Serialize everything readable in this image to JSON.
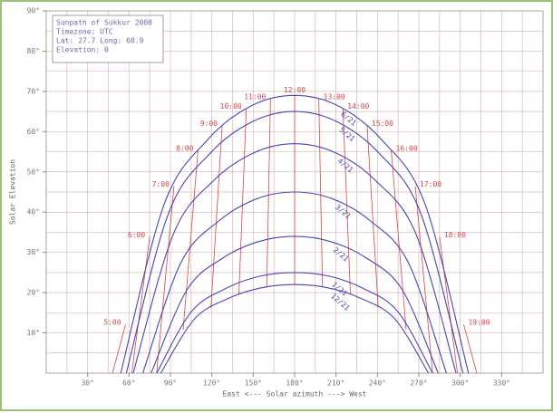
{
  "chart_data": {
    "type": "sunpath",
    "legend_lines": [
      "Sunpath of Sukkur 2008",
      "Timezone: UTC",
      "Lat: 27.7 Long: 68.9",
      "Elevation: 0"
    ],
    "xlabel": "East <--- Solar azimuth ---> West",
    "ylabel": "Solar Elevation",
    "xlim": [
      0,
      360
    ],
    "ylim": [
      0,
      90
    ],
    "xticks": [
      {
        "value": 30,
        "label": "30°"
      },
      {
        "value": 60,
        "label": "60°"
      },
      {
        "value": 90,
        "label": "90°"
      },
      {
        "value": 120,
        "label": "120°"
      },
      {
        "value": 150,
        "label": "150°"
      },
      {
        "value": 180,
        "label": "180°"
      },
      {
        "value": 210,
        "label": "210°"
      },
      {
        "value": 240,
        "label": "240°"
      },
      {
        "value": 270,
        "label": "270°"
      },
      {
        "value": 300,
        "label": "300°"
      },
      {
        "value": 330,
        "label": "330°"
      }
    ],
    "yticks": [
      {
        "value": 10,
        "label": "10°"
      },
      {
        "value": 20,
        "label": "20°"
      },
      {
        "value": 30,
        "label": "30°"
      },
      {
        "value": 40,
        "label": "40°"
      },
      {
        "value": 50,
        "label": "50°"
      },
      {
        "value": 60,
        "label": "60°"
      },
      {
        "value": 70,
        "label": "70°"
      },
      {
        "value": 80,
        "label": "80°"
      },
      {
        "value": 90,
        "label": "90°"
      }
    ],
    "xminor": 15,
    "yminor": 5,
    "grid": true,
    "grid_color": "#d9b8b8",
    "series": [
      {
        "name": "6/21",
        "color": "#4646b4",
        "x": [
          54,
          85.5,
          117,
          148.5,
          180,
          211.5,
          243,
          274.5,
          306
        ],
        "values": [
          0,
          42.0,
          58.0,
          66.4,
          69,
          66.4,
          58.0,
          42.0,
          0
        ]
      },
      {
        "name": "5/21",
        "color": "#4646b4",
        "x": [
          58,
          88.5,
          119,
          149.5,
          180,
          210.5,
          241,
          271.5,
          302
        ],
        "values": [
          0,
          39.6,
          54.7,
          62.5,
          65,
          62.5,
          54.7,
          39.6,
          0
        ]
      },
      {
        "name": "4/21",
        "color": "#4646b4",
        "x": [
          63,
          92.3,
          121.5,
          150.8,
          180,
          209.3,
          238.5,
          267.8,
          297
        ],
        "values": [
          0,
          34.7,
          47.9,
          54.8,
          57,
          54.8,
          47.9,
          34.7,
          0
        ]
      },
      {
        "name": "3/21",
        "color": "#4646b4",
        "x": [
          70,
          97.5,
          125,
          152.5,
          180,
          207.5,
          235,
          262.5,
          290
        ],
        "values": [
          0,
          27.4,
          37.8,
          43.3,
          45,
          43.3,
          37.8,
          27.4,
          0
        ]
      },
      {
        "name": "2/21",
        "color": "#4646b4",
        "x": [
          76,
          102,
          128,
          154,
          180,
          206,
          232,
          258,
          284
        ],
        "values": [
          0,
          20.7,
          28.6,
          32.7,
          34,
          32.7,
          28.6,
          20.7,
          0
        ]
      },
      {
        "name": "1/21",
        "color": "#4646b4",
        "x": [
          80,
          105,
          130,
          155,
          180,
          205,
          230,
          255,
          280
        ],
        "values": [
          0,
          15.2,
          21.0,
          24.1,
          25,
          24.1,
          21.0,
          15.2,
          0
        ]
      },
      {
        "name": "12/21",
        "color": "#4646b4",
        "x": [
          83,
          107.3,
          131.5,
          155.8,
          180,
          204.3,
          228.5,
          252.8,
          277
        ],
        "values": [
          0,
          13.4,
          18.5,
          21.2,
          22,
          21.2,
          18.5,
          13.4,
          0
        ]
      }
    ],
    "hour_color": "#d04848",
    "hour_lines": [
      {
        "name": "12:00",
        "x": [
          180,
          180
        ],
        "values": [
          69,
          22
        ]
      },
      {
        "name": "11:00",
        "x": [
          162.5,
          159.8
        ],
        "values": [
          68.2,
          21.4
        ]
      },
      {
        "name": "10:00",
        "x": [
          145.0,
          139.6
        ],
        "values": [
          65.8,
          19.6
        ]
      },
      {
        "name": "9:00",
        "x": [
          127.5,
          119.4
        ],
        "values": [
          61.5,
          16.3
        ]
      },
      {
        "name": "8:00",
        "x": [
          110.0,
          99.2
        ],
        "values": [
          55.3,
          10.8
        ]
      },
      {
        "name": "7:00",
        "x": [
          92.6,
          80
        ],
        "values": [
          46.5,
          0
        ]
      },
      {
        "name": "6:00",
        "x": [
          75.0,
          62
        ],
        "values": [
          33.9,
          0
        ]
      },
      {
        "name": "5:00",
        "x": [
          57.5,
          48
        ],
        "values": [
          12.1,
          0
        ]
      },
      {
        "name": "13:00",
        "x": [
          197.5,
          200.2
        ],
        "values": [
          68.2,
          21.4
        ]
      },
      {
        "name": "14:00",
        "x": [
          215.0,
          220.4
        ],
        "values": [
          65.8,
          19.6
        ]
      },
      {
        "name": "15:00",
        "x": [
          232.5,
          240.6
        ],
        "values": [
          61.5,
          16.3
        ]
      },
      {
        "name": "16:00",
        "x": [
          250.0,
          260.8
        ],
        "values": [
          55.3,
          10.8
        ]
      },
      {
        "name": "17:00",
        "x": [
          267.4,
          280
        ],
        "values": [
          46.5,
          0
        ]
      },
      {
        "name": "18:00",
        "x": [
          285.0,
          298
        ],
        "values": [
          33.9,
          0
        ]
      },
      {
        "name": "19:00",
        "x": [
          302.5,
          312
        ],
        "values": [
          12.1,
          0
        ]
      }
    ]
  }
}
